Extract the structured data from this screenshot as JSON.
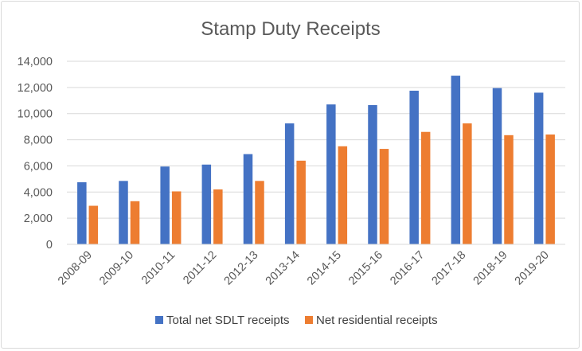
{
  "chart_data": {
    "type": "bar",
    "title": "Stamp Duty Receipts",
    "xlabel": "",
    "ylabel": "",
    "ylim": [
      0,
      14000
    ],
    "yticks": [
      0,
      2000,
      4000,
      6000,
      8000,
      10000,
      12000,
      14000
    ],
    "ytick_labels": [
      "0",
      "2,000",
      "4,000",
      "6,000",
      "8,000",
      "10,000",
      "12,000",
      "14,000"
    ],
    "grid": true,
    "legend_position": "bottom",
    "categories": [
      "2008-09",
      "2009-10",
      "2010-11",
      "2011-12",
      "2012-13",
      "2013-14",
      "2014-15",
      "2015-16",
      "2016-17",
      "2017-18",
      "2018-19",
      "2019-20"
    ],
    "series": [
      {
        "name": "Total net SDLT receipts",
        "color": "#4472c4",
        "values": [
          4750,
          4850,
          5950,
          6100,
          6900,
          9250,
          10700,
          10650,
          11750,
          12900,
          11950,
          11600
        ]
      },
      {
        "name": "Net residential receipts",
        "color": "#ed7d31",
        "values": [
          2950,
          3300,
          4050,
          4200,
          4850,
          6400,
          7500,
          7300,
          8600,
          9250,
          8350,
          8400
        ]
      }
    ]
  }
}
